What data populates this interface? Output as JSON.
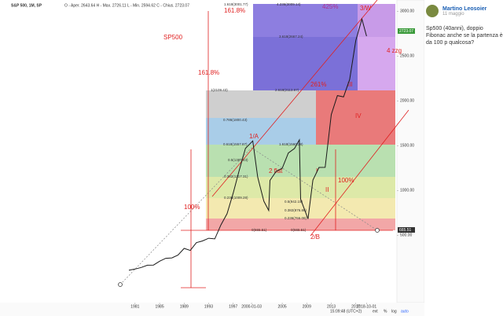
{
  "header": {
    "symbol": "S&P 500, 1M, SP",
    "ohlc": "O - Aper. 2643.64  H - Max. 2726.11  L - Min. 2594.62  C - Chius. 2723.07"
  },
  "chart": {
    "type": "line",
    "color": "#1a1a1a",
    "xlim": [
      1978.2,
      2023.7
    ],
    "ylim": [
      -200,
      3100
    ],
    "xticks": [
      1981,
      1985,
      1989,
      1993,
      1997,
      {
        "value": 2000,
        "label": "2000-01-03"
      },
      2005,
      2009,
      2013,
      2017,
      {
        "value": 2018.75,
        "label": "2018-10-01"
      }
    ],
    "yticks": [
      {
        "value": 3000,
        "label": "3000.00"
      },
      {
        "value": 2500,
        "label": "2500.00"
      },
      {
        "value": 2000,
        "label": "2000.00"
      },
      {
        "value": 1500,
        "label": "1500.00"
      },
      {
        "value": 1000,
        "label": "1000.00"
      },
      {
        "value": 500,
        "label": "500.00"
      }
    ],
    "x": [
      1980,
      1981,
      1982,
      1983,
      1984,
      1985,
      1986,
      1987,
      1988,
      1989,
      1990,
      1991,
      1992,
      1993,
      1994,
      1995,
      1996,
      1997,
      1998,
      1999,
      2000.2,
      2001,
      2002,
      2002.8,
      2003,
      2004,
      2005,
      2006,
      2007,
      2007.8,
      2008,
      2009.2,
      2010,
      2011,
      2012,
      2013,
      2014,
      2015,
      2016,
      2017,
      2018,
      2018.75
    ],
    "values": [
      110,
      122,
      140,
      165,
      167,
      210,
      242,
      247,
      278,
      353,
      330,
      417,
      436,
      466,
      459,
      615,
      740,
      970,
      1229,
      1469,
      1553,
      1148,
      880,
      777,
      1112,
      1212,
      1248,
      1418,
      1468,
      1565,
      903,
      683,
      1115,
      1257,
      1258,
      1848,
      2059,
      2044,
      2239,
      2674,
      2914,
      2723
    ],
    "annotations": [
      "1.618(3001.77)",
      "161.8%",
      "4.236(3009.14)",
      "425%",
      "3/W",
      "3.618(2667.24)",
      "SP500",
      "4 zzg",
      "161.8%",
      "1(2109.43)",
      "2.618(2113.87)",
      "261%",
      "III",
      "0.786(1800.43)",
      "IV",
      "1/A",
      "0.618(1557.87)",
      "1.618(1560.28)",
      "0.5(1387.43)",
      "2 flat",
      "0.382(1217.31)",
      "I",
      "100%",
      "II",
      "0.236(1009.28)",
      "0.5(942.15)",
      "0.382(876.86)",
      "100%",
      "0.236(766.08)",
      "0(665.51)",
      "0(665.51)",
      "2/B",
      "2723.07",
      "665.51"
    ]
  },
  "footer": {
    "time": "15:09:48 (UTC+2)",
    "buttons": [
      "ext",
      "%",
      "log",
      "auto"
    ]
  },
  "post": {
    "author": "Martino Leosoier",
    "date": "11 maggio",
    "text": "Sp500 (40anni), doppio Fibonac anche se la partenza è da 100 p qualcosa?"
  }
}
